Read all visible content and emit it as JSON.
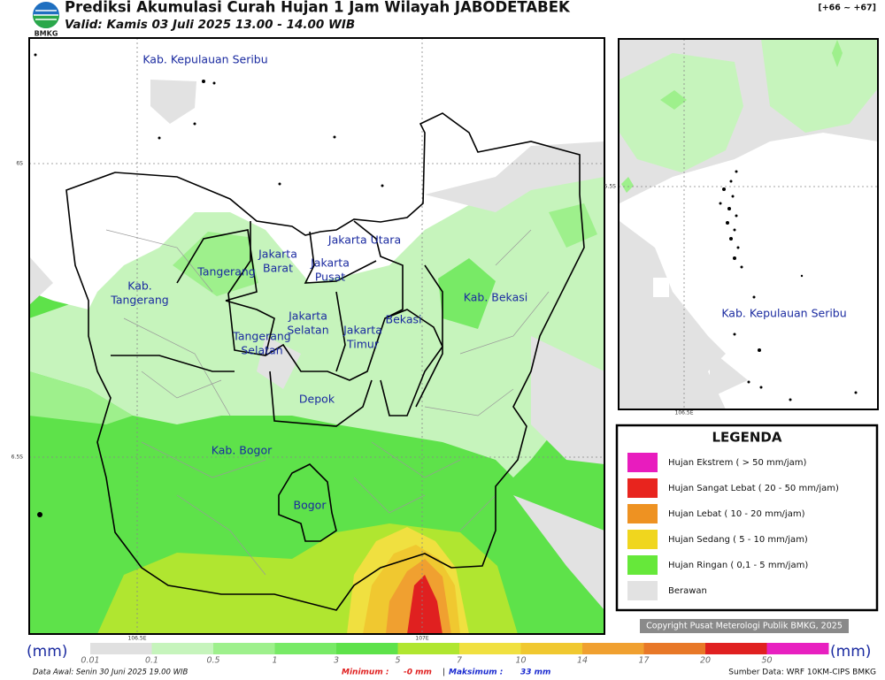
{
  "header": {
    "logo": "BMKG",
    "title": "Prediksi Akumulasi Curah Hujan 1 Jam Wilayah JABODETABEK",
    "subtitle": "Valid: Kamis 03 Juli 2025 13.00 - 14.00 WIB",
    "code": "[+66 ~ +67]"
  },
  "main_map": {
    "grid_labels": {
      "lat": [
        "6S",
        "6.5S"
      ],
      "lon": [
        "106.5E",
        "107E"
      ]
    },
    "regions": [
      {
        "lines": [
          "Kab. Kepulauan Seribu"
        ]
      },
      {
        "lines": [
          "Jakarta Utara"
        ]
      },
      {
        "lines": [
          "Jakarta",
          "Barat"
        ]
      },
      {
        "lines": [
          "Jakarta",
          "Pusat"
        ]
      },
      {
        "lines": [
          "Tangerang"
        ]
      },
      {
        "lines": [
          "Kab.",
          "Tangerang"
        ]
      },
      {
        "lines": [
          "Jakarta",
          "Selatan"
        ]
      },
      {
        "lines": [
          "Jakarta",
          "Timur"
        ]
      },
      {
        "lines": [
          "Bekasi"
        ]
      },
      {
        "lines": [
          "Kab. Bekasi"
        ]
      },
      {
        "lines": [
          "Tangerang",
          "Selatan"
        ]
      },
      {
        "lines": [
          "Depok"
        ]
      },
      {
        "lines": [
          "Kab. Bogor"
        ]
      },
      {
        "lines": [
          "Bogor"
        ]
      }
    ]
  },
  "inset_map": {
    "lat_label": "5.5S",
    "lon_label": "106.5E",
    "region": "Kab. Kepulauan Seribu"
  },
  "legend": {
    "title": "LEGENDA",
    "items": [
      {
        "label": "Hujan Ekstrem ( > 50 mm/jam)",
        "color": "#e81cbe"
      },
      {
        "label": "Hujan Sangat Lebat ( 20 - 50 mm/jam)",
        "color": "#e8241e"
      },
      {
        "label": "Hujan Lebat ( 10 - 20 mm/jam)",
        "color": "#ee9222"
      },
      {
        "label": "Hujan Sedang ( 5 - 10 mm/jam)",
        "color": "#f0d61e"
      },
      {
        "label": "Hujan Ringan ( 0,1 - 5 mm/jam)",
        "color": "#66e83a"
      },
      {
        "label": "Berawan",
        "color": "#e2e2e2"
      }
    ]
  },
  "copyright": "Copyright Pusat Meterologi Publik BMKG, 2025",
  "colorbar": {
    "unit": "(mm)",
    "ticks": [
      "0.01",
      "0.1",
      "0.5",
      "1",
      "3",
      "5",
      "7",
      "10",
      "14",
      "17",
      "20",
      "50"
    ],
    "colors": [
      "#e0e0e0",
      "#c6f4bc",
      "#9ef08c",
      "#78ea66",
      "#5ee24a",
      "#b0e630",
      "#f0e040",
      "#f0c830",
      "#f0a030",
      "#e87828",
      "#e02020",
      "#e820c0"
    ]
  },
  "footer": {
    "data_awal": "Data Awal: Senin 30 Juni 2025 19.00 WIB",
    "minimum_label": "Minimum :",
    "minimum_value": "-0 mm",
    "separator": "|",
    "maksimum_label": "Maksimum :",
    "maksimum_value": "33 mm",
    "source": "Sumber Data: WRF 10KM-CIPS BMKG"
  }
}
